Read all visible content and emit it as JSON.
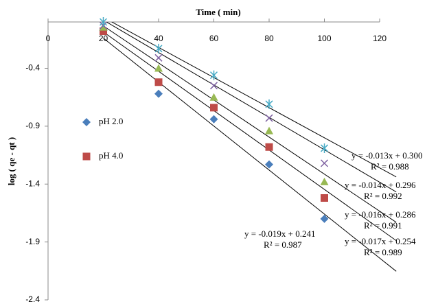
{
  "chart_data": {
    "type": "scatter",
    "title": "Time ( min)",
    "y_label": "log ( qe - qt )",
    "xlim": [
      0,
      120
    ],
    "xticks": [
      0,
      20,
      40,
      60,
      80,
      100,
      120
    ],
    "ylim": [
      -2.4,
      0
    ],
    "yticks": [
      -2.4,
      -1.9,
      -1.4,
      -0.9,
      -0.4
    ],
    "series": [
      {
        "name": "pH 2.0",
        "color": "#4a7ebb",
        "marker": "diamond",
        "x": [
          20,
          40,
          60,
          80,
          100
        ],
        "values": [
          -0.075,
          -0.62,
          -0.84,
          -1.23,
          -1.7
        ]
      },
      {
        "name": "pH 4.0",
        "color": "#be4b48",
        "marker": "square",
        "x": [
          20,
          40,
          60,
          80,
          100
        ],
        "values": [
          -0.08,
          -0.52,
          -0.74,
          -1.08,
          -1.52
        ]
      },
      {
        "color": "#98b954",
        "marker": "triangle",
        "x": [
          20,
          40,
          60,
          80,
          100
        ],
        "values": [
          -0.045,
          -0.4,
          -0.65,
          -0.94,
          -1.38
        ]
      },
      {
        "color": "#7d60a0",
        "marker": "x",
        "x": [
          20,
          40,
          60,
          80,
          100
        ],
        "values": [
          -0.03,
          -0.31,
          -0.55,
          -0.83,
          -1.22
        ]
      },
      {
        "color": "#46aac5",
        "marker": "star",
        "x": [
          20,
          40,
          60,
          80,
          100
        ],
        "values": [
          0.0,
          -0.23,
          -0.46,
          -0.71,
          -1.09
        ]
      }
    ],
    "trendlines": [
      {
        "slope": -0.019,
        "intercept": 0.241,
        "equation": "y = -0.019x + 0.241",
        "r2": "R² = 0.987"
      },
      {
        "slope": -0.017,
        "intercept": 0.254,
        "equation": "y = -0.017x + 0.254",
        "r2": "R² = 0.989"
      },
      {
        "slope": -0.016,
        "intercept": 0.286,
        "equation": "y = -0.016x + 0.286",
        "r2": "R² = 0.991"
      },
      {
        "slope": -0.014,
        "intercept": 0.296,
        "equation": "y = -0.014x + 0.296",
        "r2": "R² = 0.992"
      },
      {
        "slope": -0.013,
        "intercept": 0.3,
        "equation": "y = -0.013x + 0.300",
        "r2": "R² = 0.988"
      }
    ]
  }
}
